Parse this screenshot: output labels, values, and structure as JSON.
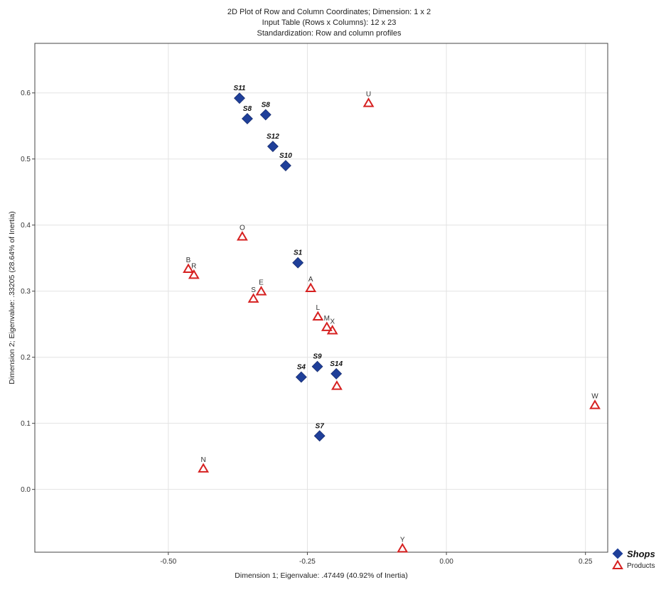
{
  "chart_data": {
    "type": "scatter",
    "title": [
      "2D Plot of Row and Column Coordinates; Dimension:  1 x  2",
      "Input Table (Rows x Columns): 12 x 23",
      "Standardization: Row and column profiles"
    ],
    "xlabel": "Dimension 1; Eigenvalue: .47449 (40.92% of Inertia)",
    "ylabel": "Dimension 2; Eigenvalue: .33205 (28.64% of Inertia)",
    "xlim": [
      -0.74,
      0.29
    ],
    "ylim": [
      -0.095,
      0.675
    ],
    "x_ticks": [
      {
        "value": -0.5,
        "label": "-0.50"
      },
      {
        "value": -0.25,
        "label": "-0.25"
      },
      {
        "value": 0.0,
        "label": "0.00"
      },
      {
        "value": 0.25,
        "label": "0.25"
      }
    ],
    "y_ticks": [
      {
        "value": 0.0,
        "label": "0.0"
      },
      {
        "value": 0.1,
        "label": "0.1"
      },
      {
        "value": 0.2,
        "label": "0.2"
      },
      {
        "value": 0.3,
        "label": "0.3"
      },
      {
        "value": 0.4,
        "label": "0.4"
      },
      {
        "value": 0.5,
        "label": "0.5"
      },
      {
        "value": 0.6,
        "label": "0.6"
      }
    ],
    "grid": true,
    "legend_position": "bottom-right",
    "series": [
      {
        "name": "Shops",
        "marker": "diamond",
        "color": "#1f3f99",
        "points": [
          {
            "label": "S11",
            "x": -0.372,
            "y": 0.592
          },
          {
            "label": "S8",
            "x": -0.358,
            "y": 0.561
          },
          {
            "label": "S8",
            "x": -0.325,
            "y": 0.567
          },
          {
            "label": "S12",
            "x": -0.312,
            "y": 0.519
          },
          {
            "label": "S10",
            "x": -0.289,
            "y": 0.49
          },
          {
            "label": "S1",
            "x": -0.267,
            "y": 0.343
          },
          {
            "label": "S4",
            "x": -0.261,
            "y": 0.17
          },
          {
            "label": "S9",
            "x": -0.232,
            "y": 0.186
          },
          {
            "label": "S14",
            "x": -0.198,
            "y": 0.175
          },
          {
            "label": "S7",
            "x": -0.228,
            "y": 0.081
          }
        ]
      },
      {
        "name": "Products",
        "marker": "triangle",
        "color": "#d62020",
        "points": [
          {
            "label": "U",
            "x": -0.14,
            "y": 0.584
          },
          {
            "label": "O",
            "x": -0.367,
            "y": 0.382
          },
          {
            "label": "B",
            "x": -0.464,
            "y": 0.333
          },
          {
            "label": "R",
            "x": -0.454,
            "y": 0.324
          },
          {
            "label": "S",
            "x": -0.347,
            "y": 0.288
          },
          {
            "label": "E",
            "x": -0.333,
            "y": 0.299
          },
          {
            "label": "A",
            "x": -0.244,
            "y": 0.304
          },
          {
            "label": "L",
            "x": -0.231,
            "y": 0.261
          },
          {
            "label": "M",
            "x": -0.215,
            "y": 0.245
          },
          {
            "label": "X",
            "x": -0.205,
            "y": 0.24
          },
          {
            "label": "",
            "x": -0.197,
            "y": 0.156
          },
          {
            "label": "N",
            "x": -0.437,
            "y": 0.031
          },
          {
            "label": "W",
            "x": 0.267,
            "y": 0.127
          },
          {
            "label": "Y",
            "x": -0.079,
            "y": -0.09
          }
        ]
      }
    ]
  }
}
